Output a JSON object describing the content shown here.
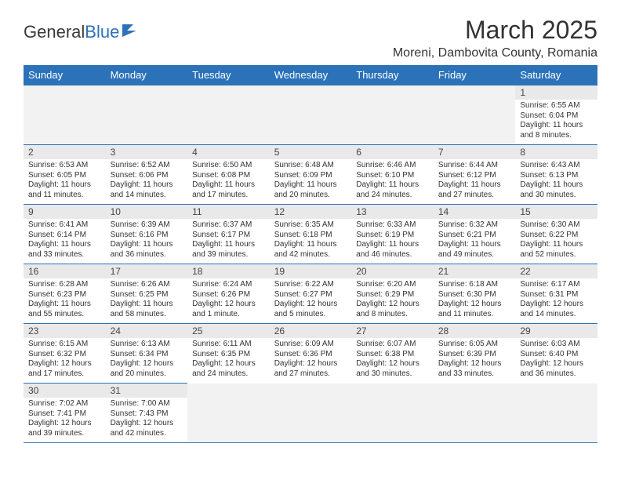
{
  "logo": {
    "part1": "General",
    "part2": "Blue"
  },
  "title": "March 2025",
  "location": "Moreni, Dambovita County, Romania",
  "colors": {
    "header_bg": "#2b72b9",
    "header_fg": "#ffffff",
    "daynum_bg": "#e9e9e9",
    "border": "#2b72b9",
    "logo_blue": "#2b72b9"
  },
  "day_headers": [
    "Sunday",
    "Monday",
    "Tuesday",
    "Wednesday",
    "Thursday",
    "Friday",
    "Saturday"
  ],
  "weeks": [
    [
      null,
      null,
      null,
      null,
      null,
      null,
      {
        "n": "1",
        "sunrise": "Sunrise: 6:55 AM",
        "sunset": "Sunset: 6:04 PM",
        "daylight": "Daylight: 11 hours and 8 minutes."
      }
    ],
    [
      {
        "n": "2",
        "sunrise": "Sunrise: 6:53 AM",
        "sunset": "Sunset: 6:05 PM",
        "daylight": "Daylight: 11 hours and 11 minutes."
      },
      {
        "n": "3",
        "sunrise": "Sunrise: 6:52 AM",
        "sunset": "Sunset: 6:06 PM",
        "daylight": "Daylight: 11 hours and 14 minutes."
      },
      {
        "n": "4",
        "sunrise": "Sunrise: 6:50 AM",
        "sunset": "Sunset: 6:08 PM",
        "daylight": "Daylight: 11 hours and 17 minutes."
      },
      {
        "n": "5",
        "sunrise": "Sunrise: 6:48 AM",
        "sunset": "Sunset: 6:09 PM",
        "daylight": "Daylight: 11 hours and 20 minutes."
      },
      {
        "n": "6",
        "sunrise": "Sunrise: 6:46 AM",
        "sunset": "Sunset: 6:10 PM",
        "daylight": "Daylight: 11 hours and 24 minutes."
      },
      {
        "n": "7",
        "sunrise": "Sunrise: 6:44 AM",
        "sunset": "Sunset: 6:12 PM",
        "daylight": "Daylight: 11 hours and 27 minutes."
      },
      {
        "n": "8",
        "sunrise": "Sunrise: 6:43 AM",
        "sunset": "Sunset: 6:13 PM",
        "daylight": "Daylight: 11 hours and 30 minutes."
      }
    ],
    [
      {
        "n": "9",
        "sunrise": "Sunrise: 6:41 AM",
        "sunset": "Sunset: 6:14 PM",
        "daylight": "Daylight: 11 hours and 33 minutes."
      },
      {
        "n": "10",
        "sunrise": "Sunrise: 6:39 AM",
        "sunset": "Sunset: 6:16 PM",
        "daylight": "Daylight: 11 hours and 36 minutes."
      },
      {
        "n": "11",
        "sunrise": "Sunrise: 6:37 AM",
        "sunset": "Sunset: 6:17 PM",
        "daylight": "Daylight: 11 hours and 39 minutes."
      },
      {
        "n": "12",
        "sunrise": "Sunrise: 6:35 AM",
        "sunset": "Sunset: 6:18 PM",
        "daylight": "Daylight: 11 hours and 42 minutes."
      },
      {
        "n": "13",
        "sunrise": "Sunrise: 6:33 AM",
        "sunset": "Sunset: 6:19 PM",
        "daylight": "Daylight: 11 hours and 46 minutes."
      },
      {
        "n": "14",
        "sunrise": "Sunrise: 6:32 AM",
        "sunset": "Sunset: 6:21 PM",
        "daylight": "Daylight: 11 hours and 49 minutes."
      },
      {
        "n": "15",
        "sunrise": "Sunrise: 6:30 AM",
        "sunset": "Sunset: 6:22 PM",
        "daylight": "Daylight: 11 hours and 52 minutes."
      }
    ],
    [
      {
        "n": "16",
        "sunrise": "Sunrise: 6:28 AM",
        "sunset": "Sunset: 6:23 PM",
        "daylight": "Daylight: 11 hours and 55 minutes."
      },
      {
        "n": "17",
        "sunrise": "Sunrise: 6:26 AM",
        "sunset": "Sunset: 6:25 PM",
        "daylight": "Daylight: 11 hours and 58 minutes."
      },
      {
        "n": "18",
        "sunrise": "Sunrise: 6:24 AM",
        "sunset": "Sunset: 6:26 PM",
        "daylight": "Daylight: 12 hours and 1 minute."
      },
      {
        "n": "19",
        "sunrise": "Sunrise: 6:22 AM",
        "sunset": "Sunset: 6:27 PM",
        "daylight": "Daylight: 12 hours and 5 minutes."
      },
      {
        "n": "20",
        "sunrise": "Sunrise: 6:20 AM",
        "sunset": "Sunset: 6:29 PM",
        "daylight": "Daylight: 12 hours and 8 minutes."
      },
      {
        "n": "21",
        "sunrise": "Sunrise: 6:18 AM",
        "sunset": "Sunset: 6:30 PM",
        "daylight": "Daylight: 12 hours and 11 minutes."
      },
      {
        "n": "22",
        "sunrise": "Sunrise: 6:17 AM",
        "sunset": "Sunset: 6:31 PM",
        "daylight": "Daylight: 12 hours and 14 minutes."
      }
    ],
    [
      {
        "n": "23",
        "sunrise": "Sunrise: 6:15 AM",
        "sunset": "Sunset: 6:32 PM",
        "daylight": "Daylight: 12 hours and 17 minutes."
      },
      {
        "n": "24",
        "sunrise": "Sunrise: 6:13 AM",
        "sunset": "Sunset: 6:34 PM",
        "daylight": "Daylight: 12 hours and 20 minutes."
      },
      {
        "n": "25",
        "sunrise": "Sunrise: 6:11 AM",
        "sunset": "Sunset: 6:35 PM",
        "daylight": "Daylight: 12 hours and 24 minutes."
      },
      {
        "n": "26",
        "sunrise": "Sunrise: 6:09 AM",
        "sunset": "Sunset: 6:36 PM",
        "daylight": "Daylight: 12 hours and 27 minutes."
      },
      {
        "n": "27",
        "sunrise": "Sunrise: 6:07 AM",
        "sunset": "Sunset: 6:38 PM",
        "daylight": "Daylight: 12 hours and 30 minutes."
      },
      {
        "n": "28",
        "sunrise": "Sunrise: 6:05 AM",
        "sunset": "Sunset: 6:39 PM",
        "daylight": "Daylight: 12 hours and 33 minutes."
      },
      {
        "n": "29",
        "sunrise": "Sunrise: 6:03 AM",
        "sunset": "Sunset: 6:40 PM",
        "daylight": "Daylight: 12 hours and 36 minutes."
      }
    ],
    [
      {
        "n": "30",
        "sunrise": "Sunrise: 7:02 AM",
        "sunset": "Sunset: 7:41 PM",
        "daylight": "Daylight: 12 hours and 39 minutes."
      },
      {
        "n": "31",
        "sunrise": "Sunrise: 7:00 AM",
        "sunset": "Sunset: 7:43 PM",
        "daylight": "Daylight: 12 hours and 42 minutes."
      },
      null,
      null,
      null,
      null,
      null
    ]
  ]
}
